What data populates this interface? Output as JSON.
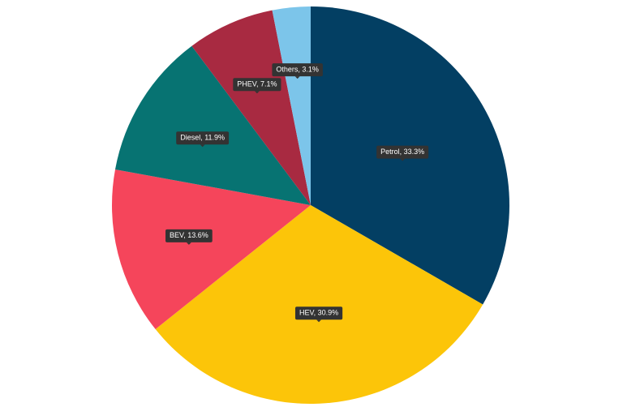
{
  "chart_data": {
    "type": "pie",
    "values": [
      33.3,
      30.9,
      13.6,
      11.9,
      7.1,
      3.1
    ],
    "value_labels": [
      "Petrol, 33.3%",
      "HEV, 30.9%",
      "BEV, 13.6%",
      "Diesel, 11.9%",
      "PHEV, 7.1%",
      "Others, 3.1%"
    ],
    "colors": [
      "#033f63",
      "#fcc509",
      "#f5455b",
      "#077372",
      "#a82a41",
      "#7cc5ea"
    ]
  }
}
